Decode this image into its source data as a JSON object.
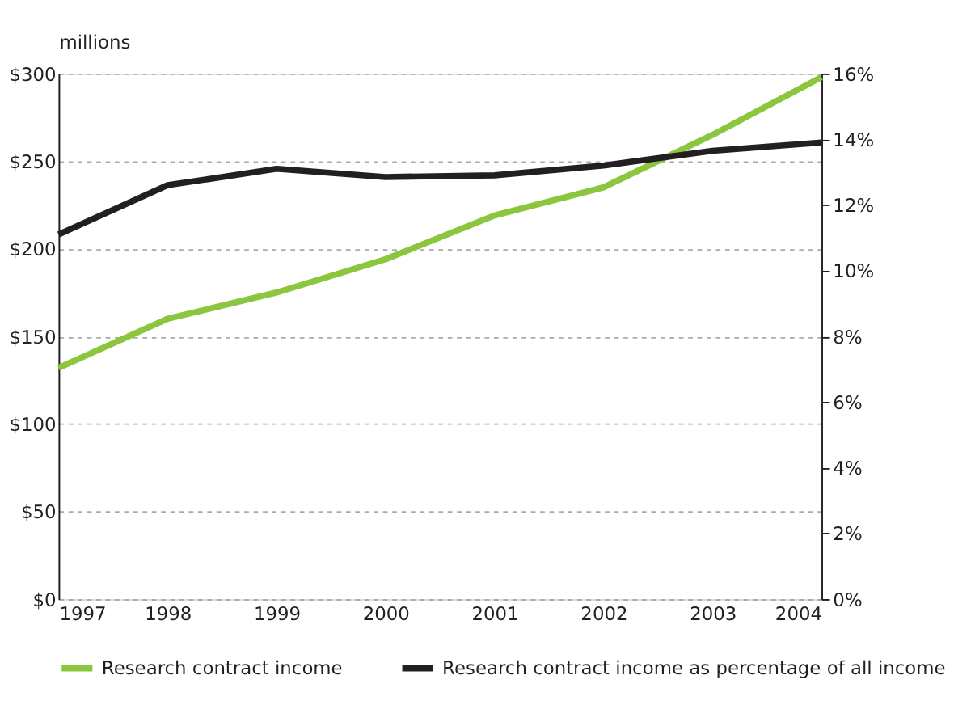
{
  "chart_data": {
    "type": "line",
    "ylabel": "millions",
    "x": [
      1997,
      1998,
      1999,
      2000,
      2001,
      2002,
      2003,
      2004
    ],
    "series": [
      {
        "name": "Research contract income",
        "color": "#8cc63f",
        "values": [
          132,
          160,
          175,
          194,
          219,
          235,
          265,
          298
        ]
      },
      {
        "name": "Research contract income as percentage of all income",
        "color": "#231f20",
        "axis": "y2",
        "values": [
          11.1,
          12.6,
          13.1,
          12.85,
          12.9,
          13.2,
          13.65,
          13.9
        ]
      }
    ],
    "xlim": [
      1997,
      2004
    ],
    "xticks": [
      1997,
      1998,
      1999,
      2000,
      2001,
      2002,
      2003,
      2004
    ],
    "ylim": [
      0,
      300
    ],
    "yticks": [
      {
        "value": 0,
        "label": "$0"
      },
      {
        "value": 50,
        "label": "$50"
      },
      {
        "value": 100,
        "label": "$100"
      },
      {
        "value": 150,
        "label": "$150"
      },
      {
        "value": 200,
        "label": "$200"
      },
      {
        "value": 250,
        "label": "$250"
      },
      {
        "value": 300,
        "label": "$300"
      }
    ],
    "y2lim": [
      0,
      16
    ],
    "y2ticks": [
      {
        "value": 0,
        "label": "0%"
      },
      {
        "value": 2,
        "label": "2%"
      },
      {
        "value": 4,
        "label": "4%"
      },
      {
        "value": 6,
        "label": "6%"
      },
      {
        "value": 8,
        "label": "8%"
      },
      {
        "value": 10,
        "label": "10%"
      },
      {
        "value": 12,
        "label": "12%"
      },
      {
        "value": 14,
        "label": "14%"
      },
      {
        "value": 16,
        "label": "16%"
      }
    ],
    "grid": "y",
    "legend": "bottom",
    "marker": "none",
    "line_style": "solid"
  }
}
